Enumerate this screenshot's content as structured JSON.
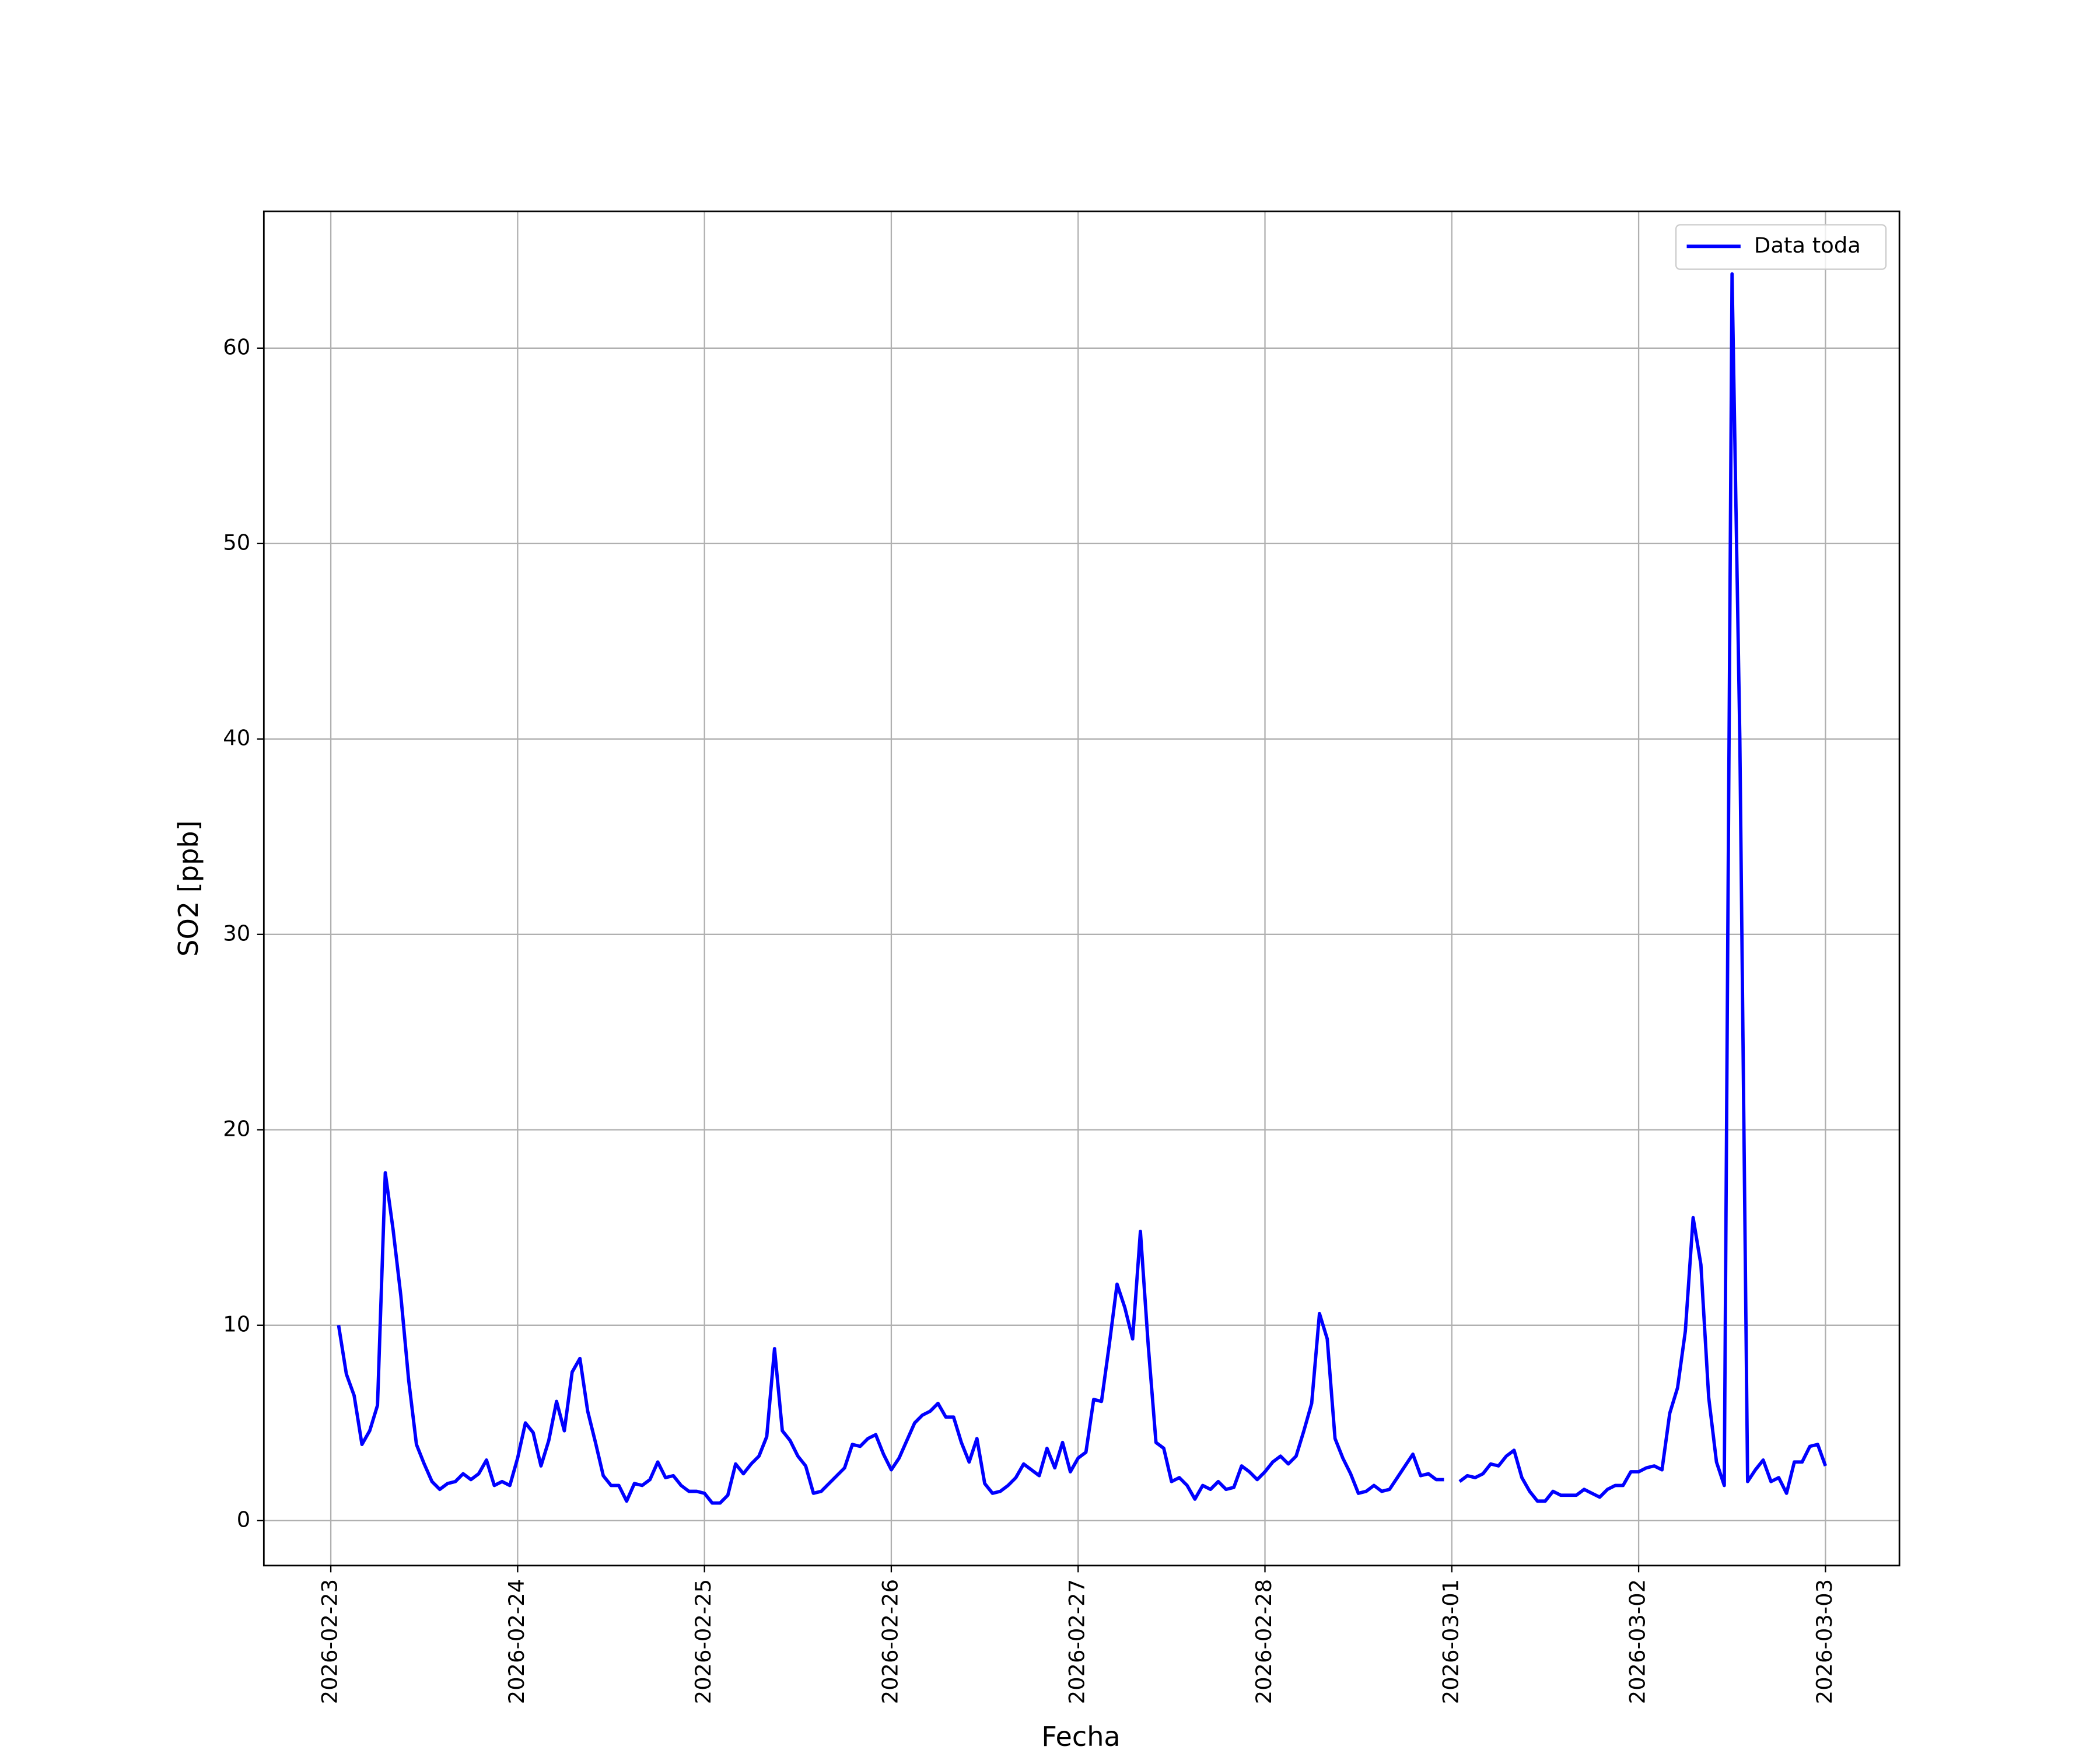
{
  "chart_data": {
    "type": "line",
    "xlabel": "Fecha",
    "ylabel": "SO2 [ppb]",
    "xlim": [
      "2026-02-22T15:24",
      "2026-03-03T09:30"
    ],
    "xticks": [
      "2026-02-23",
      "2026-02-24",
      "2026-02-25",
      "2026-02-26",
      "2026-02-27",
      "2026-02-28",
      "2026-03-01",
      "2026-03-02",
      "2026-03-03"
    ],
    "ylim": [
      -2.3,
      67
    ],
    "yticks": [
      0,
      10,
      20,
      30,
      40,
      50,
      60
    ],
    "grid": true,
    "legend": "upper right",
    "x": [
      "2026-02-23T01:00",
      "2026-02-23T02:00",
      "2026-02-23T03:00",
      "2026-02-23T04:00",
      "2026-02-23T05:00",
      "2026-02-23T06:00",
      "2026-02-23T07:00",
      "2026-02-23T08:00",
      "2026-02-23T09:00",
      "2026-02-23T10:00",
      "2026-02-23T11:00",
      "2026-02-23T12:00",
      "2026-02-23T13:00",
      "2026-02-23T14:00",
      "2026-02-23T15:00",
      "2026-02-23T16:00",
      "2026-02-23T17:00",
      "2026-02-23T18:00",
      "2026-02-23T19:00",
      "2026-02-23T20:00",
      "2026-02-23T21:00",
      "2026-02-23T22:00",
      "2026-02-23T23:00",
      "2026-02-24T00:00",
      "2026-02-24T01:00",
      "2026-02-24T02:00",
      "2026-02-24T03:00",
      "2026-02-24T04:00",
      "2026-02-24T05:00",
      "2026-02-24T06:00",
      "2026-02-24T07:00",
      "2026-02-24T08:00",
      "2026-02-24T09:00",
      "2026-02-24T10:00",
      "2026-02-24T11:00",
      "2026-02-24T12:00",
      "2026-02-24T13:00",
      "2026-02-24T14:00",
      "2026-02-24T15:00",
      "2026-02-24T16:00",
      "2026-02-24T17:00",
      "2026-02-24T18:00",
      "2026-02-24T19:00",
      "2026-02-24T20:00",
      "2026-02-24T21:00",
      "2026-02-24T22:00",
      "2026-02-24T23:00",
      "2026-02-25T00:00",
      "2026-02-25T01:00",
      "2026-02-25T02:00",
      "2026-02-25T03:00",
      "2026-02-25T04:00",
      "2026-02-25T05:00",
      "2026-02-25T06:00",
      "2026-02-25T07:00",
      "2026-02-25T08:00",
      "2026-02-25T09:00",
      "2026-02-25T10:00",
      "2026-02-25T11:00",
      "2026-02-25T12:00",
      "2026-02-25T13:00",
      "2026-02-25T14:00",
      "2026-02-25T15:00",
      "2026-02-25T16:00",
      "2026-02-25T17:00",
      "2026-02-25T18:00",
      "2026-02-25T19:00",
      "2026-02-25T20:00",
      "2026-02-25T21:00",
      "2026-02-25T22:00",
      "2026-02-25T23:00",
      "2026-02-26T00:00",
      "2026-02-26T01:00",
      "2026-02-26T02:00",
      "2026-02-26T03:00",
      "2026-02-26T04:00",
      "2026-02-26T05:00",
      "2026-02-26T06:00",
      "2026-02-26T07:00",
      "2026-02-26T08:00",
      "2026-02-26T09:00",
      "2026-02-26T10:00",
      "2026-02-26T11:00",
      "2026-02-26T12:00",
      "2026-02-26T13:00",
      "2026-02-26T14:00",
      "2026-02-26T15:00",
      "2026-02-26T16:00",
      "2026-02-26T17:00",
      "2026-02-26T18:00",
      "2026-02-26T19:00",
      "2026-02-26T20:00",
      "2026-02-26T21:00",
      "2026-02-26T22:00",
      "2026-02-26T23:00",
      "2026-02-27T00:00",
      "2026-02-27T01:00",
      "2026-02-27T02:00",
      "2026-02-27T03:00",
      "2026-02-27T04:00",
      "2026-02-27T05:00",
      "2026-02-27T06:00",
      "2026-02-27T07:00",
      "2026-02-27T08:00",
      "2026-02-27T09:00",
      "2026-02-27T10:00",
      "2026-02-27T11:00",
      "2026-02-27T12:00",
      "2026-02-27T13:00",
      "2026-02-27T14:00",
      "2026-02-27T15:00",
      "2026-02-27T16:00",
      "2026-02-27T17:00",
      "2026-02-27T18:00",
      "2026-02-27T19:00",
      "2026-02-27T20:00",
      "2026-02-27T21:00",
      "2026-02-27T22:00",
      "2026-02-27T23:00",
      "2026-02-28T00:00",
      "2026-02-28T01:00",
      "2026-02-28T02:00",
      "2026-02-28T03:00",
      "2026-02-28T04:00",
      "2026-02-28T05:00",
      "2026-02-28T06:00",
      "2026-02-28T07:00",
      "2026-02-28T08:00",
      "2026-02-28T09:00",
      "2026-02-28T10:00",
      "2026-02-28T11:00",
      "2026-02-28T12:00",
      "2026-02-28T13:00",
      "2026-02-28T14:00",
      "2026-02-28T15:00",
      "2026-02-28T16:00",
      "2026-02-28T17:00",
      "2026-02-28T18:00",
      "2026-02-28T19:00",
      "2026-02-28T20:00",
      "2026-02-28T21:00",
      "2026-02-28T22:00",
      "2026-02-28T23:00",
      "2026-03-01T00:00",
      "2026-03-01T01:00",
      "2026-03-01T02:00",
      "2026-03-01T03:00",
      "2026-03-01T04:00",
      "2026-03-01T05:00",
      "2026-03-01T06:00",
      "2026-03-01T07:00",
      "2026-03-01T08:00",
      "2026-03-01T09:00",
      "2026-03-01T10:00",
      "2026-03-01T11:00",
      "2026-03-01T12:00",
      "2026-03-01T13:00",
      "2026-03-01T14:00",
      "2026-03-01T15:00",
      "2026-03-01T16:00",
      "2026-03-01T17:00",
      "2026-03-01T18:00",
      "2026-03-01T19:00",
      "2026-03-01T20:00",
      "2026-03-01T21:00",
      "2026-03-01T22:00",
      "2026-03-01T23:00",
      "2026-03-02T00:00",
      "2026-03-02T01:00",
      "2026-03-02T02:00",
      "2026-03-02T03:00",
      "2026-03-02T04:00",
      "2026-03-02T05:00",
      "2026-03-02T06:00",
      "2026-03-02T07:00",
      "2026-03-02T08:00",
      "2026-03-02T09:00",
      "2026-03-02T10:00",
      "2026-03-02T11:00",
      "2026-03-02T12:00",
      "2026-03-02T13:00",
      "2026-03-02T14:00",
      "2026-03-02T15:00",
      "2026-03-02T16:00",
      "2026-03-02T17:00",
      "2026-03-02T18:00",
      "2026-03-02T19:00",
      "2026-03-02T20:00",
      "2026-03-02T21:00",
      "2026-03-02T22:00",
      "2026-03-02T23:00",
      "2026-03-03T00:00"
    ],
    "series": [
      {
        "name": "Data toda",
        "color": "#0000ff",
        "values": [
          10.0,
          7.5,
          6.4,
          3.9,
          4.6,
          5.9,
          17.8,
          14.9,
          11.5,
          7.2,
          3.9,
          2.9,
          2.0,
          1.6,
          1.9,
          2.0,
          2.4,
          2.1,
          2.4,
          3.1,
          1.8,
          2.0,
          1.8,
          3.2,
          5.0,
          4.5,
          2.8,
          4.1,
          6.1,
          4.6,
          7.6,
          8.3,
          5.6,
          4.0,
          2.3,
          1.8,
          1.8,
          1.0,
          1.9,
          1.8,
          2.1,
          3.0,
          2.2,
          2.3,
          1.8,
          1.5,
          1.5,
          1.4,
          0.9,
          0.9,
          1.3,
          2.9,
          2.4,
          2.9,
          3.3,
          4.3,
          8.8,
          4.6,
          4.1,
          3.3,
          2.8,
          1.4,
          1.5,
          1.9,
          2.3,
          2.7,
          3.9,
          3.8,
          4.2,
          4.4,
          3.4,
          2.6,
          3.2,
          4.1,
          5.0,
          5.4,
          5.6,
          6.0,
          5.3,
          5.3,
          4.0,
          3.0,
          4.2,
          1.9,
          1.4,
          1.5,
          1.8,
          2.2,
          2.9,
          2.6,
          2.3,
          3.7,
          2.7,
          4.0,
          2.5,
          3.2,
          3.5,
          6.2,
          6.1,
          9.0,
          12.1,
          10.9,
          9.3,
          14.8,
          9.0,
          4.0,
          3.7,
          2.0,
          2.2,
          1.8,
          1.1,
          1.8,
          1.6,
          2.0,
          1.6,
          1.7,
          2.8,
          2.5,
          2.1,
          2.5,
          3.0,
          3.3,
          2.9,
          3.3,
          4.6,
          6.0,
          10.6,
          9.3,
          4.2,
          3.2,
          2.4,
          1.4,
          1.5,
          1.8,
          1.5,
          1.6,
          2.2,
          2.8,
          3.4,
          2.3,
          2.4,
          2.1,
          2.1,
          null,
          2.0,
          2.3,
          2.2,
          2.4,
          2.9,
          2.8,
          3.3,
          3.6,
          2.2,
          1.5,
          1.0,
          1.0,
          1.5,
          1.3,
          1.3,
          1.3,
          1.6,
          1.4,
          1.2,
          1.6,
          1.8,
          1.8,
          2.5,
          2.5,
          2.7,
          2.8,
          2.6,
          5.5,
          6.8,
          9.7,
          15.5,
          13.1,
          6.3,
          3.0,
          1.8,
          63.8,
          40.0,
          2.0,
          2.6,
          3.1,
          2.0,
          2.2,
          1.4,
          3.0,
          3.0,
          3.8,
          3.9,
          2.8
        ]
      }
    ]
  }
}
